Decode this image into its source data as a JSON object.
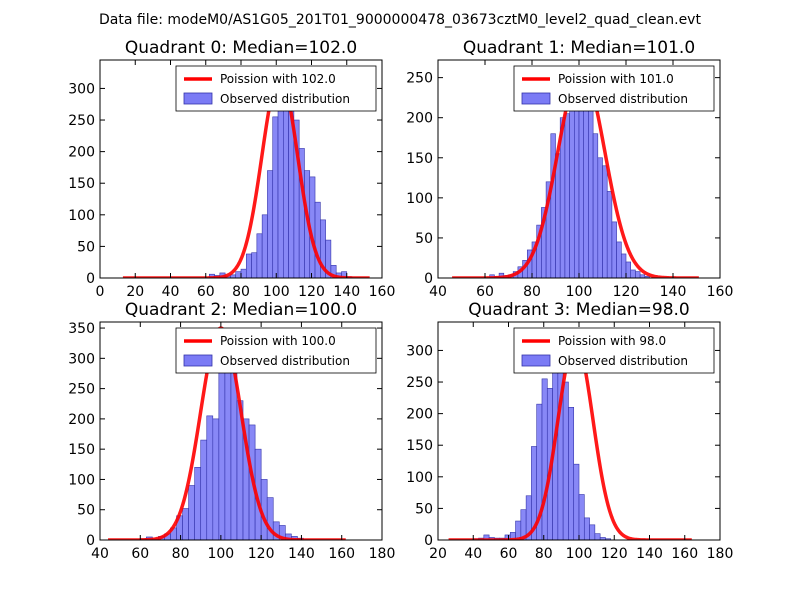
{
  "figure": {
    "suptitle": "Data file: modeM0/AS1G05_201T01_9000000478_03673cztM0_level2_quad_clean.evt"
  },
  "colors": {
    "bar_fill": "#7b7bf5",
    "bar_edge": "#3333aa",
    "curve": "#ff0000",
    "axes": "#000000"
  },
  "chart_data": [
    {
      "type": "bar",
      "title": "Quadrant 0: Median=102.0",
      "median": 102.0,
      "legend": {
        "curve_label": "Poission with 102.0",
        "bars_label": "Observed distribution",
        "placement": "top-right"
      },
      "xlim": [
        0,
        160
      ],
      "ylim": [
        0,
        345
      ],
      "xticks": [
        0,
        20,
        40,
        60,
        80,
        100,
        120,
        140,
        160
      ],
      "yticks": [
        0,
        50,
        100,
        150,
        200,
        250,
        300
      ],
      "xticklabels": [
        "0",
        "20",
        "40",
        "60",
        "80",
        "100",
        "120",
        "140",
        "160"
      ],
      "yticklabels": [
        "0",
        "50",
        "100",
        "150",
        "200",
        "250",
        "300"
      ],
      "bin_start": 62,
      "bin_width": 3,
      "values": [
        6,
        4,
        8,
        3,
        5,
        10,
        14,
        38,
        40,
        70,
        100,
        170,
        255,
        295,
        330,
        290,
        250,
        205,
        170,
        160,
        120,
        92,
        60,
        20,
        8,
        10,
        2
      ],
      "curve": {
        "x_range": [
          13,
          153
        ],
        "peak": 320,
        "sigma": 10.1
      }
    },
    {
      "type": "bar",
      "title": "Quadrant 1: Median=101.0",
      "median": 101.0,
      "legend": {
        "curve_label": "Poission with 101.0",
        "bars_label": "Observed distribution",
        "placement": "top-right"
      },
      "xlim": [
        40,
        160
      ],
      "ylim": [
        0,
        272
      ],
      "xticks": [
        40,
        60,
        80,
        100,
        120,
        140,
        160
      ],
      "yticks": [
        0,
        50,
        100,
        150,
        200,
        250
      ],
      "xticklabels": [
        "40",
        "60",
        "80",
        "100",
        "120",
        "140",
        "160"
      ],
      "yticklabels": [
        "0",
        "50",
        "100",
        "150",
        "200",
        "250"
      ],
      "bin_start": 62,
      "bin_width": 2,
      "values": [
        4,
        2,
        6,
        3,
        4,
        8,
        14,
        22,
        35,
        45,
        66,
        88,
        120,
        180,
        155,
        200,
        205,
        220,
        230,
        245,
        260,
        220,
        180,
        150,
        140,
        108,
        70,
        45,
        30,
        20,
        10,
        8,
        4,
        2
      ],
      "curve": {
        "x_range": [
          46,
          151
        ],
        "peak": 260,
        "sigma": 10
      }
    },
    {
      "type": "bar",
      "title": "Quadrant 2: Median=100.0",
      "median": 100.0,
      "legend": {
        "curve_label": "Poission with 100.0",
        "bars_label": "Observed distribution",
        "placement": "top-right"
      },
      "xlim": [
        40,
        180
      ],
      "ylim": [
        0,
        360
      ],
      "xticks": [
        40,
        60,
        80,
        100,
        120,
        140,
        160,
        180
      ],
      "yticks": [
        0,
        50,
        100,
        150,
        200,
        250,
        300,
        350
      ],
      "xticklabels": [
        "40",
        "60",
        "80",
        "100",
        "120",
        "140",
        "160",
        "180"
      ],
      "yticklabels": [
        "0",
        "50",
        "100",
        "150",
        "200",
        "250",
        "300",
        "350"
      ],
      "bin_start": 60,
      "bin_width": 3,
      "values": [
        2,
        5,
        2,
        6,
        10,
        20,
        40,
        52,
        90,
        120,
        165,
        205,
        200,
        300,
        310,
        300,
        230,
        200,
        190,
        150,
        100,
        70,
        30,
        24,
        10,
        6,
        3
      ],
      "curve": {
        "x_range": [
          44,
          162
        ],
        "peak": 350,
        "sigma": 10
      }
    },
    {
      "type": "bar",
      "title": "Quadrant 3: Median=98.0",
      "median": 98.0,
      "legend": {
        "curve_label": "Poission with 98.0",
        "bars_label": "Observed distribution",
        "placement": "top-right"
      },
      "xlim": [
        20,
        180
      ],
      "ylim": [
        0,
        345
      ],
      "xticks": [
        20,
        40,
        60,
        80,
        100,
        120,
        140,
        160,
        180
      ],
      "yticks": [
        0,
        50,
        100,
        150,
        200,
        250,
        300
      ],
      "xticklabels": [
        "20",
        "40",
        "60",
        "80",
        "100",
        "120",
        "140",
        "160",
        "180"
      ],
      "yticklabels": [
        "0",
        "50",
        "100",
        "150",
        "200",
        "250",
        "300"
      ],
      "bin_start": 40,
      "bin_width": 3,
      "values": [
        2,
        3,
        8,
        4,
        3,
        3,
        8,
        12,
        30,
        48,
        70,
        148,
        215,
        255,
        240,
        295,
        290,
        250,
        210,
        120,
        72,
        35,
        24,
        10,
        4,
        2
      ],
      "curve": {
        "x_range": [
          26,
          164
        ],
        "peak": 315,
        "sigma": 9.9
      }
    }
  ]
}
